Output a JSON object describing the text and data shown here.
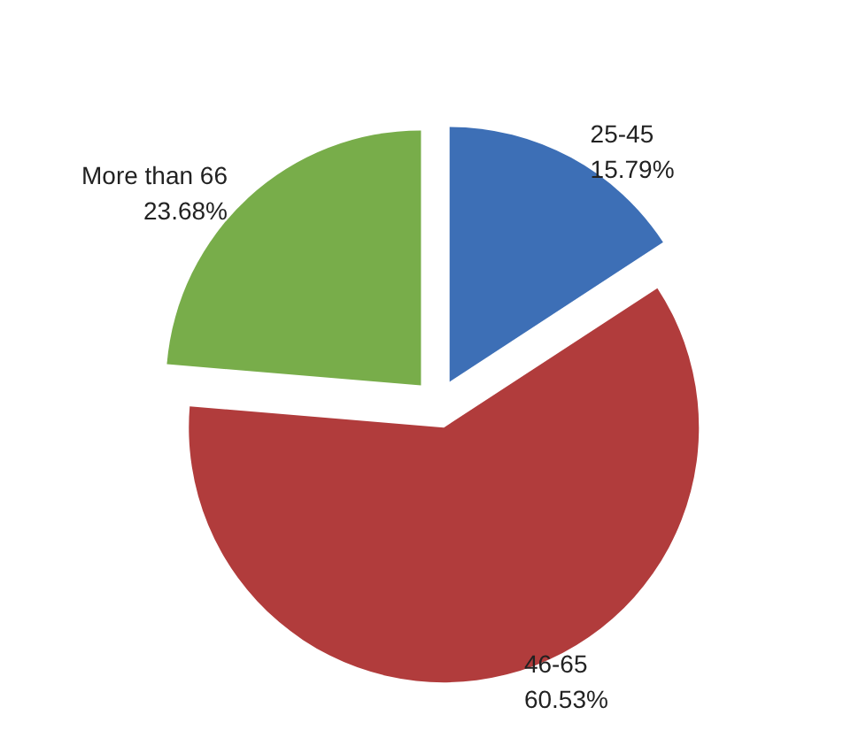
{
  "chart_data": {
    "type": "pie",
    "categories": [
      "25-45",
      "46-65",
      "More than 66"
    ],
    "values": [
      15.79,
      60.53,
      23.68
    ],
    "colors": [
      "#3d6fb6",
      "#b13c3c",
      "#78ad4a"
    ],
    "value_labels": [
      "15.79%",
      "60.53%",
      "23.68%"
    ]
  }
}
